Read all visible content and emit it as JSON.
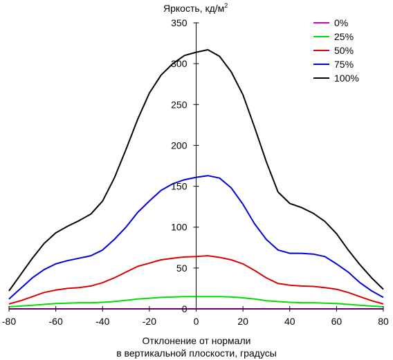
{
  "chart_data": {
    "type": "line",
    "title": "",
    "ylabel": "Яркость, кд/м",
    "ylabel_superscript": "2",
    "xlabel_line1": "Отклонение от нормали",
    "xlabel_line2": "в вертикальной плоскости, градусы",
    "xlim": [
      -80,
      80
    ],
    "ylim": [
      0,
      350
    ],
    "xticks": [
      -80,
      -60,
      -40,
      -20,
      0,
      20,
      40,
      60,
      80
    ],
    "yticks": [
      0,
      50,
      100,
      150,
      200,
      250,
      300,
      350
    ],
    "legend_position": "top-right",
    "x": [
      -80,
      -75,
      -70,
      -65,
      -60,
      -55,
      -50,
      -45,
      -40,
      -35,
      -30,
      -25,
      -20,
      -15,
      -10,
      -5,
      0,
      5,
      10,
      15,
      20,
      25,
      30,
      35,
      40,
      45,
      50,
      55,
      60,
      65,
      70,
      75,
      80
    ],
    "series": [
      {
        "name": "0%",
        "color": "#cc00cc",
        "values": [
          0,
          0,
          0,
          0,
          0,
          0,
          0,
          0,
          0,
          0,
          0,
          0,
          0,
          0,
          0,
          0,
          0,
          0,
          0,
          0,
          0,
          0,
          0,
          0,
          0,
          0,
          0,
          0,
          0,
          0,
          0,
          0,
          0
        ]
      },
      {
        "name": "25%",
        "color": "#00dd00",
        "values": [
          2.5,
          3.5,
          4.5,
          5.5,
          6.5,
          7,
          7.5,
          7.5,
          8,
          9,
          10.5,
          12,
          13,
          14,
          14.5,
          15,
          15,
          15,
          15,
          14.5,
          13.5,
          12,
          10,
          9,
          8,
          7.5,
          7.5,
          7,
          6.5,
          5.5,
          4.5,
          3.5,
          2.5
        ]
      },
      {
        "name": "50%",
        "color": "#dd0000",
        "values": [
          6,
          10,
          15,
          20,
          23,
          25,
          26,
          28,
          32,
          38,
          45,
          52,
          56,
          60,
          62,
          63.5,
          64,
          65,
          63,
          60,
          55,
          47,
          38,
          31,
          29,
          28,
          27.5,
          26,
          24,
          20,
          15,
          10,
          6
        ]
      },
      {
        "name": "75%",
        "color": "#0000dd",
        "values": [
          12,
          25,
          38,
          48,
          55,
          59,
          62,
          65,
          72,
          85,
          100,
          118,
          132,
          145,
          153,
          158,
          161,
          163,
          160,
          148,
          128,
          104,
          85,
          72,
          68,
          68,
          67,
          64,
          55,
          45,
          32,
          22,
          14
        ]
      },
      {
        "name": "100%",
        "color": "#000000",
        "values": [
          22,
          42,
          62,
          80,
          93,
          101,
          108,
          116,
          132,
          160,
          195,
          232,
          264,
          286,
          300,
          310,
          314,
          317,
          309,
          290,
          262,
          222,
          180,
          143,
          129,
          124,
          117,
          107,
          92,
          72,
          54,
          38,
          24
        ]
      }
    ]
  }
}
